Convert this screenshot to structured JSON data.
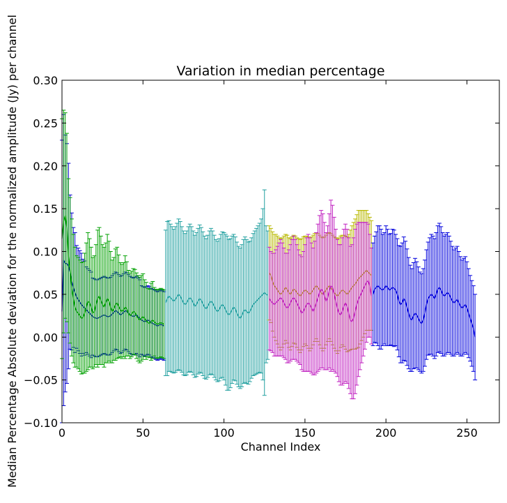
{
  "chart_data": {
    "type": "line",
    "title": "Variation in median percentage",
    "xlabel": "Channel Index",
    "ylabel": "Median Percentage Absolute deviation for the normalized amplitude (Jy) per channel",
    "xlim": [
      0,
      270
    ],
    "ylim": [
      -0.1,
      0.3
    ],
    "xticks": [
      0,
      50,
      100,
      150,
      200,
      250
    ],
    "yticks": [
      -0.1,
      -0.05,
      0.0,
      0.05,
      0.1,
      0.15,
      0.2,
      0.25,
      0.3
    ],
    "xtick_labels": [
      "0",
      "50",
      "100",
      "150",
      "200",
      "250"
    ],
    "ytick_labels": [
      "−0.10",
      "−0.05",
      "0.00",
      "0.05",
      "0.10",
      "0.15",
      "0.20",
      "0.25",
      "0.30"
    ],
    "grid": false,
    "series": [
      {
        "color": "#0000cc",
        "x_start": 0,
        "values": [
          0.03,
          0.09,
          0.086,
          0.086,
          0.083,
          0.076,
          0.065,
          0.058,
          0.052,
          0.047,
          0.044,
          0.041,
          0.038,
          0.036,
          0.034,
          0.032,
          0.03,
          0.028,
          0.026,
          0.024,
          0.023,
          0.022,
          0.022,
          0.023,
          0.024,
          0.025,
          0.026,
          0.025,
          0.024,
          0.024,
          0.025,
          0.027,
          0.029,
          0.031,
          0.03,
          0.028,
          0.026,
          0.027,
          0.029,
          0.031,
          0.03,
          0.028,
          0.026,
          0.025,
          0.024,
          0.025,
          0.026,
          0.024,
          0.022,
          0.02,
          0.019,
          0.018,
          0.019,
          0.02,
          0.019,
          0.017,
          0.016,
          0.015,
          0.014,
          0.013,
          0.014,
          0.015,
          0.014,
          0.013
        ],
        "errors": [
          0.2,
          0.17,
          0.15,
          0.14,
          0.12,
          0.09,
          0.08,
          0.07,
          0.07,
          0.06,
          0.06,
          0.06,
          0.06,
          0.055,
          0.055,
          0.05,
          0.05,
          0.05,
          0.05,
          0.045,
          0.045,
          0.045,
          0.045,
          0.045,
          0.045,
          0.045,
          0.045,
          0.045,
          0.045,
          0.045,
          0.045,
          0.045,
          0.045,
          0.045,
          0.045,
          0.045,
          0.045,
          0.045,
          0.045,
          0.045,
          0.045,
          0.045,
          0.045,
          0.045,
          0.045,
          0.045,
          0.045,
          0.045,
          0.045,
          0.04,
          0.04,
          0.04,
          0.04,
          0.04,
          0.04,
          0.04,
          0.04,
          0.04,
          0.04,
          0.04,
          0.04,
          0.04,
          0.04,
          0.04
        ]
      },
      {
        "color": "#00a000",
        "x_start": 0,
        "values": [
          0.115,
          0.135,
          0.142,
          0.128,
          0.095,
          0.078,
          0.058,
          0.045,
          0.035,
          0.03,
          0.028,
          0.025,
          0.022,
          0.023,
          0.028,
          0.035,
          0.042,
          0.04,
          0.035,
          0.028,
          0.03,
          0.038,
          0.045,
          0.048,
          0.043,
          0.038,
          0.035,
          0.04,
          0.045,
          0.042,
          0.035,
          0.03,
          0.033,
          0.038,
          0.04,
          0.036,
          0.032,
          0.03,
          0.032,
          0.035,
          0.033,
          0.028,
          0.025,
          0.027,
          0.03,
          0.029,
          0.025,
          0.022,
          0.02,
          0.022,
          0.024,
          0.022,
          0.019,
          0.017,
          0.016,
          0.018,
          0.02,
          0.018,
          0.016,
          0.015,
          0.016,
          0.017,
          0.016,
          0.015
        ],
        "errors": [
          0.14,
          0.13,
          0.12,
          0.11,
          0.09,
          0.085,
          0.08,
          0.075,
          0.07,
          0.065,
          0.065,
          0.065,
          0.065,
          0.065,
          0.07,
          0.075,
          0.08,
          0.075,
          0.07,
          0.065,
          0.065,
          0.07,
          0.08,
          0.08,
          0.075,
          0.07,
          0.07,
          0.07,
          0.075,
          0.07,
          0.065,
          0.06,
          0.06,
          0.065,
          0.065,
          0.06,
          0.055,
          0.055,
          0.055,
          0.06,
          0.055,
          0.05,
          0.05,
          0.05,
          0.05,
          0.05,
          0.05,
          0.05,
          0.05,
          0.05,
          0.05,
          0.045,
          0.045,
          0.04,
          0.04,
          0.045,
          0.045,
          0.04,
          0.04,
          0.04,
          0.04,
          0.04,
          0.04,
          0.04
        ]
      },
      {
        "color": "#22a0a0",
        "x_start": 64,
        "values": [
          0.04,
          0.045,
          0.048,
          0.046,
          0.044,
          0.042,
          0.044,
          0.047,
          0.05,
          0.048,
          0.044,
          0.04,
          0.038,
          0.04,
          0.044,
          0.046,
          0.044,
          0.04,
          0.036,
          0.038,
          0.042,
          0.045,
          0.043,
          0.039,
          0.035,
          0.033,
          0.036,
          0.04,
          0.042,
          0.04,
          0.036,
          0.032,
          0.03,
          0.032,
          0.036,
          0.038,
          0.036,
          0.032,
          0.028,
          0.026,
          0.028,
          0.032,
          0.035,
          0.033,
          0.028,
          0.024,
          0.022,
          0.025,
          0.03,
          0.032,
          0.03,
          0.028,
          0.03,
          0.034,
          0.038,
          0.04,
          0.042,
          0.044,
          0.046,
          0.048,
          0.05,
          0.052,
          0.05,
          0.049
        ],
        "errors": [
          0.085,
          0.09,
          0.088,
          0.086,
          0.085,
          0.084,
          0.085,
          0.086,
          0.088,
          0.087,
          0.085,
          0.084,
          0.083,
          0.084,
          0.085,
          0.086,
          0.085,
          0.084,
          0.083,
          0.084,
          0.085,
          0.086,
          0.085,
          0.084,
          0.083,
          0.082,
          0.083,
          0.084,
          0.085,
          0.084,
          0.083,
          0.082,
          0.082,
          0.083,
          0.084,
          0.085,
          0.086,
          0.088,
          0.09,
          0.088,
          0.087,
          0.086,
          0.085,
          0.084,
          0.083,
          0.082,
          0.082,
          0.083,
          0.084,
          0.085,
          0.084,
          0.083,
          0.082,
          0.082,
          0.083,
          0.084,
          0.085,
          0.086,
          0.087,
          0.09,
          0.1,
          0.12,
          0.08,
          0.075
        ]
      },
      {
        "color": "#b8b800",
        "x_start": 128,
        "values": [
          0.075,
          0.072,
          0.065,
          0.06,
          0.058,
          0.055,
          0.052,
          0.05,
          0.052,
          0.055,
          0.058,
          0.056,
          0.052,
          0.05,
          0.053,
          0.056,
          0.055,
          0.052,
          0.05,
          0.048,
          0.05,
          0.053,
          0.055,
          0.054,
          0.052,
          0.05,
          0.052,
          0.055,
          0.058,
          0.06,
          0.058,
          0.055,
          0.052,
          0.05,
          0.052,
          0.055,
          0.058,
          0.06,
          0.058,
          0.055,
          0.052,
          0.05,
          0.048,
          0.05,
          0.053,
          0.055,
          0.054,
          0.052,
          0.05,
          0.052,
          0.055,
          0.058,
          0.06,
          0.062,
          0.065,
          0.068,
          0.07,
          0.072,
          0.074,
          0.076,
          0.078,
          0.076,
          0.074,
          0.072
        ],
        "errors": [
          0.055,
          0.055,
          0.058,
          0.06,
          0.062,
          0.063,
          0.064,
          0.065,
          0.064,
          0.063,
          0.062,
          0.063,
          0.064,
          0.065,
          0.064,
          0.063,
          0.063,
          0.064,
          0.065,
          0.066,
          0.065,
          0.064,
          0.063,
          0.064,
          0.065,
          0.066,
          0.065,
          0.064,
          0.063,
          0.062,
          0.063,
          0.064,
          0.065,
          0.066,
          0.065,
          0.064,
          0.063,
          0.062,
          0.063,
          0.064,
          0.065,
          0.066,
          0.067,
          0.066,
          0.065,
          0.064,
          0.065,
          0.066,
          0.067,
          0.068,
          0.07,
          0.072,
          0.074,
          0.076,
          0.078,
          0.08,
          0.078,
          0.076,
          0.074,
          0.072,
          0.07,
          0.068,
          0.066,
          0.064
        ]
      },
      {
        "color": "#c020c0",
        "x_start": 128,
        "values": [
          0.045,
          0.042,
          0.04,
          0.038,
          0.04,
          0.042,
          0.044,
          0.046,
          0.044,
          0.04,
          0.036,
          0.034,
          0.036,
          0.04,
          0.044,
          0.046,
          0.044,
          0.04,
          0.036,
          0.032,
          0.028,
          0.03,
          0.034,
          0.038,
          0.04,
          0.038,
          0.034,
          0.03,
          0.034,
          0.04,
          0.046,
          0.052,
          0.056,
          0.054,
          0.048,
          0.042,
          0.046,
          0.054,
          0.06,
          0.058,
          0.05,
          0.042,
          0.034,
          0.028,
          0.026,
          0.03,
          0.036,
          0.04,
          0.036,
          0.028,
          0.02,
          0.018,
          0.022,
          0.03,
          0.038,
          0.044,
          0.048,
          0.052,
          0.056,
          0.06,
          0.064,
          0.066,
          0.06,
          0.048
        ],
        "errors": [
          0.06,
          0.058,
          0.058,
          0.06,
          0.062,
          0.064,
          0.066,
          0.068,
          0.066,
          0.064,
          0.062,
          0.064,
          0.066,
          0.068,
          0.07,
          0.072,
          0.07,
          0.068,
          0.066,
          0.064,
          0.066,
          0.07,
          0.074,
          0.078,
          0.08,
          0.078,
          0.076,
          0.074,
          0.078,
          0.082,
          0.086,
          0.09,
          0.092,
          0.09,
          0.086,
          0.08,
          0.084,
          0.09,
          0.1,
          0.096,
          0.09,
          0.084,
          0.08,
          0.08,
          0.082,
          0.086,
          0.09,
          0.092,
          0.09,
          0.088,
          0.086,
          0.09,
          0.094,
          0.096,
          0.094,
          0.09,
          0.086,
          0.082,
          0.078,
          0.074,
          0.07,
          0.066,
          0.06,
          0.056
        ]
      },
      {
        "color": "#0000dd",
        "x_start": 192,
        "values": [
          0.05,
          0.056,
          0.058,
          0.06,
          0.058,
          0.056,
          0.055,
          0.057,
          0.06,
          0.058,
          0.055,
          0.056,
          0.058,
          0.057,
          0.055,
          0.05,
          0.042,
          0.038,
          0.04,
          0.045,
          0.042,
          0.035,
          0.028,
          0.022,
          0.02,
          0.025,
          0.028,
          0.026,
          0.022,
          0.018,
          0.016,
          0.02,
          0.028,
          0.038,
          0.045,
          0.048,
          0.05,
          0.048,
          0.045,
          0.05,
          0.056,
          0.058,
          0.055,
          0.05,
          0.048,
          0.05,
          0.052,
          0.05,
          0.046,
          0.042,
          0.04,
          0.042,
          0.044,
          0.04,
          0.036,
          0.034,
          0.036,
          0.038,
          0.034,
          0.028,
          0.022,
          0.016,
          0.01,
          0.0
        ],
        "errors": [
          0.06,
          0.062,
          0.065,
          0.07,
          0.072,
          0.07,
          0.065,
          0.065,
          0.07,
          0.068,
          0.065,
          0.065,
          0.068,
          0.068,
          0.065,
          0.065,
          0.065,
          0.068,
          0.07,
          0.072,
          0.07,
          0.068,
          0.065,
          0.062,
          0.06,
          0.062,
          0.064,
          0.062,
          0.06,
          0.058,
          0.058,
          0.06,
          0.062,
          0.064,
          0.066,
          0.068,
          0.07,
          0.07,
          0.07,
          0.072,
          0.074,
          0.075,
          0.074,
          0.072,
          0.07,
          0.07,
          0.07,
          0.068,
          0.066,
          0.064,
          0.062,
          0.062,
          0.062,
          0.06,
          0.058,
          0.056,
          0.056,
          0.056,
          0.054,
          0.052,
          0.05,
          0.05,
          0.05,
          0.05
        ]
      }
    ]
  }
}
